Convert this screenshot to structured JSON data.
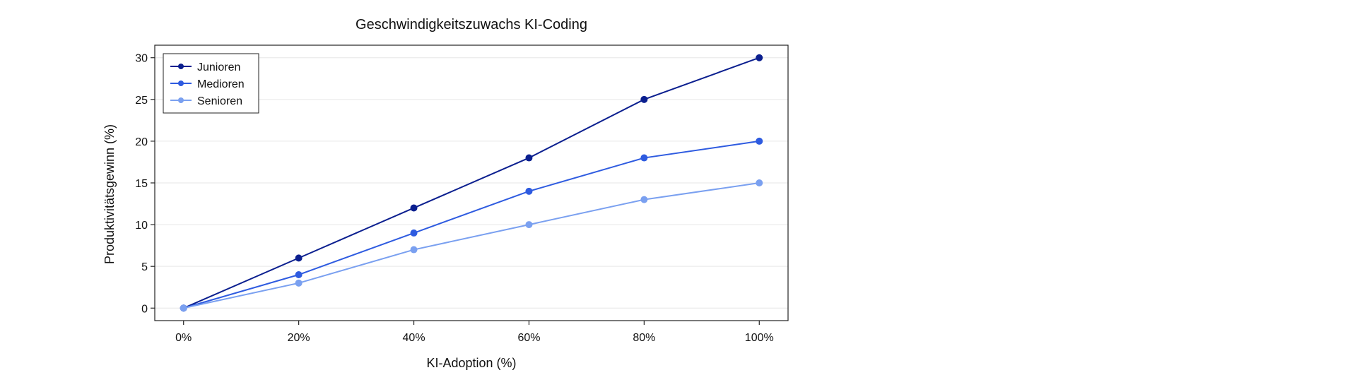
{
  "chart_data": {
    "type": "line",
    "title": "Geschwindigkeitszuwachs KI-Coding",
    "xlabel": "KI-Adoption (%)",
    "ylabel": "Produktivitätsgewinn (%)",
    "categories": [
      "0%",
      "20%",
      "40%",
      "60%",
      "80%",
      "100%"
    ],
    "x": [
      0,
      20,
      40,
      60,
      80,
      100
    ],
    "xlim": [
      -5,
      105
    ],
    "ylim": [
      -1.5,
      31.5
    ],
    "yticks": [
      0,
      5,
      10,
      15,
      20,
      25,
      30
    ],
    "grid": true,
    "legend_position": "top-left",
    "series": [
      {
        "name": "Junioren",
        "color": "#0b1f8f",
        "values": [
          0,
          6,
          12,
          18,
          25,
          30
        ]
      },
      {
        "name": "Medioren",
        "color": "#2e5be0",
        "values": [
          0,
          4,
          9,
          14,
          18,
          20
        ]
      },
      {
        "name": "Senioren",
        "color": "#7aa0f0",
        "values": [
          0,
          3,
          7,
          10,
          13,
          15
        ]
      }
    ]
  }
}
